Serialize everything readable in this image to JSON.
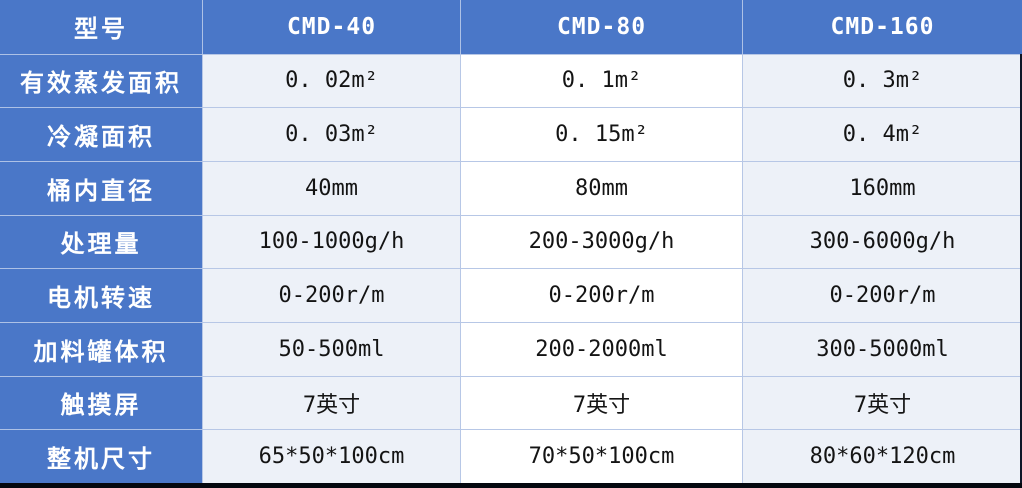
{
  "table": {
    "header": {
      "label": "型号",
      "models": [
        "CMD-40",
        "CMD-80",
        "CMD-160"
      ]
    },
    "rows": [
      {
        "label": "有效蒸发面积",
        "values": [
          "0. 02m²",
          "0. 1m²",
          "0. 3m²"
        ]
      },
      {
        "label": "冷凝面积",
        "values": [
          "0. 03m²",
          "0. 15m²",
          "0. 4m²"
        ]
      },
      {
        "label": "桶内直径",
        "values": [
          "40mm",
          "80mm",
          "160mm"
        ]
      },
      {
        "label": "处理量",
        "values": [
          "100-1000g/h",
          "200-3000g/h",
          "300-6000g/h"
        ]
      },
      {
        "label": "电机转速",
        "values": [
          "0-200r/m",
          "0-200r/m",
          "0-200r/m"
        ]
      },
      {
        "label": "加料罐体积",
        "values": [
          "50-500ml",
          "200-2000ml",
          "300-5000ml"
        ]
      },
      {
        "label": "触摸屏",
        "values": [
          "7英寸",
          "7英寸",
          "7英寸"
        ]
      },
      {
        "label": "整机尺寸",
        "values": [
          "65*50*100cm",
          "70*50*100cm",
          "80*60*120cm"
        ]
      }
    ],
    "colors": {
      "header_blue": "#4a77c8",
      "cell_tint": "#edf1f8",
      "cell_white": "#ffffff",
      "grid_line": "#b7c7e6",
      "outer_border_dark": "#0d1526",
      "header_text": "#ffffff",
      "value_text": "#141414"
    }
  }
}
